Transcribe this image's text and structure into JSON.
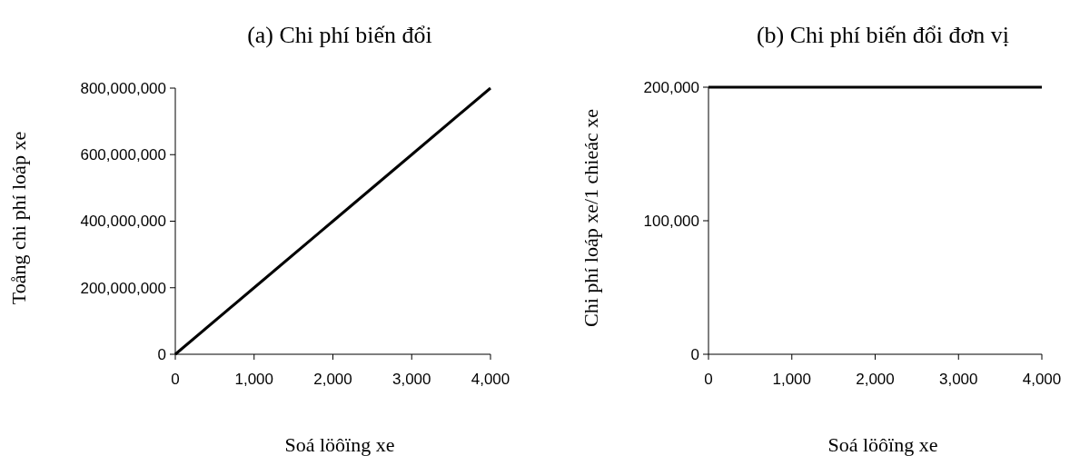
{
  "chart_data": [
    {
      "type": "line",
      "title": "(a) Chi phí biến đổi",
      "xlabel": "Soá löôïng xe",
      "ylabel": "Toång chi phí loáp xe",
      "x": [
        0,
        1000,
        2000,
        3000,
        4000
      ],
      "series": [
        {
          "color": "#000000",
          "values": [
            0,
            200000000,
            400000000,
            600000000,
            800000000
          ]
        }
      ],
      "xlim": [
        0,
        4000
      ],
      "xticks": [
        0,
        {
          "value": 1000,
          "label": "1,000"
        },
        {
          "value": 2000,
          "label": "2,000"
        },
        {
          "value": 3000,
          "label": "3,000"
        },
        {
          "value": 4000,
          "label": "4,000"
        }
      ],
      "ylim": [
        0,
        800000000
      ],
      "yticks": [
        0,
        {
          "value": 200000000,
          "label": "200,000,000"
        },
        {
          "value": 400000000,
          "label": "400,000,000"
        },
        {
          "value": 600000000,
          "label": "600,000,000"
        },
        {
          "value": 800000000,
          "label": "800,000,000"
        }
      ],
      "marker": "none",
      "line_style": "solid",
      "grid": false
    },
    {
      "type": "line",
      "title": "(b) Chi phí biến đổi đơn vị",
      "xlabel": "Soá löôïng xe",
      "ylabel": "Chi phí loáp xe/1 chieác xe",
      "x": [
        0,
        1000,
        2000,
        3000,
        4000
      ],
      "series": [
        {
          "color": "#000000",
          "values": [
            200000,
            200000,
            200000,
            200000,
            200000
          ]
        }
      ],
      "xlim": [
        0,
        4000
      ],
      "xticks": [
        0,
        {
          "value": 1000,
          "label": "1,000"
        },
        {
          "value": 2000,
          "label": "2,000"
        },
        {
          "value": 3000,
          "label": "3,000"
        },
        {
          "value": 4000,
          "label": "4,000"
        }
      ],
      "ylim": [
        0,
        200000
      ],
      "yticks": [
        0,
        {
          "value": 100000,
          "label": "100,000"
        },
        {
          "value": 200000,
          "label": "200,000"
        }
      ],
      "marker": "none",
      "line_style": "solid",
      "grid": false
    }
  ]
}
